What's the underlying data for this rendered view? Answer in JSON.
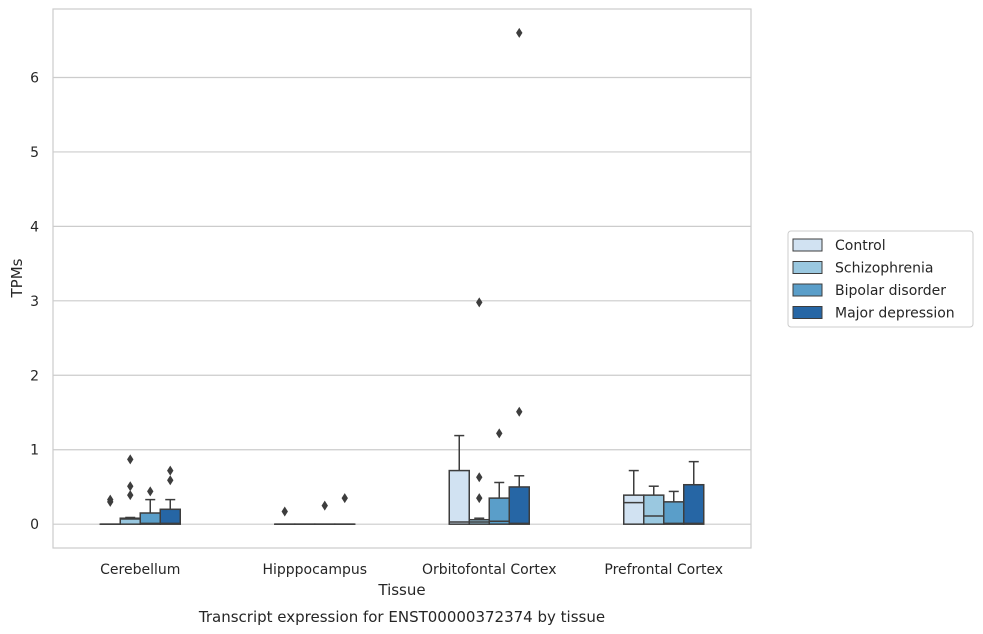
{
  "chart_data": {
    "type": "box",
    "title": "",
    "caption": "Transcript expression for ENST00000372374 by tissue",
    "xlabel": "Tissue",
    "ylabel": "TPMs",
    "ylim": [
      -0.32,
      6.92
    ],
    "yticks": [
      0,
      1,
      2,
      3,
      4,
      5,
      6
    ],
    "grid": "horizontal",
    "legend_position": "right",
    "categories": [
      "Cerebellum",
      "Hipppocampus",
      "Orbitofontal Cortex",
      "Prefrontal Cortex"
    ],
    "series": [
      {
        "name": "Control",
        "color": "#d1e2f2",
        "boxes": [
          {
            "whislo": 0,
            "q1": 0,
            "med": 0,
            "q3": 0,
            "whishi": 0,
            "fliers": [
              0.3,
              0.33
            ]
          },
          {
            "whislo": 0,
            "q1": 0,
            "med": 0,
            "q3": 0,
            "whishi": 0,
            "fliers": [
              0.17
            ]
          },
          {
            "whislo": 0,
            "q1": 0,
            "med": 0.03,
            "q3": 0.72,
            "whishi": 1.19,
            "fliers": []
          },
          {
            "whislo": 0,
            "q1": 0,
            "med": 0.29,
            "q3": 0.39,
            "whishi": 0.72,
            "fliers": []
          }
        ]
      },
      {
        "name": "Schizophrenia",
        "color": "#9ac8e0",
        "boxes": [
          {
            "whislo": 0,
            "q1": 0,
            "med": 0.07,
            "q3": 0.08,
            "whishi": 0.09,
            "fliers": [
              0.39,
              0.51,
              0.87
            ]
          },
          {
            "whislo": 0,
            "q1": 0,
            "med": 0,
            "q3": 0,
            "whishi": 0,
            "fliers": []
          },
          {
            "whislo": 0,
            "q1": 0,
            "med": 0.03,
            "q3": 0.06,
            "whishi": 0.08,
            "fliers": [
              0.35,
              0.63,
              2.98
            ]
          },
          {
            "whislo": 0,
            "q1": 0,
            "med": 0.11,
            "q3": 0.39,
            "whishi": 0.51,
            "fliers": []
          }
        ]
      },
      {
        "name": "Bipolar disorder",
        "color": "#5a9ec9",
        "boxes": [
          {
            "whislo": 0,
            "q1": 0,
            "med": 0.01,
            "q3": 0.15,
            "whishi": 0.33,
            "fliers": [
              0.44
            ]
          },
          {
            "whislo": 0,
            "q1": 0,
            "med": 0,
            "q3": 0,
            "whishi": 0,
            "fliers": [
              0.25
            ]
          },
          {
            "whislo": 0,
            "q1": 0,
            "med": 0.04,
            "q3": 0.35,
            "whishi": 0.56,
            "fliers": [
              1.22
            ]
          },
          {
            "whislo": 0,
            "q1": 0,
            "med": 0.01,
            "q3": 0.3,
            "whishi": 0.44,
            "fliers": []
          }
        ]
      },
      {
        "name": "Major depression",
        "color": "#2666a5",
        "boxes": [
          {
            "whislo": 0,
            "q1": 0,
            "med": 0.01,
            "q3": 0.2,
            "whishi": 0.33,
            "fliers": [
              0.59,
              0.72
            ]
          },
          {
            "whislo": 0,
            "q1": 0,
            "med": 0,
            "q3": 0,
            "whishi": 0,
            "fliers": [
              0.35
            ]
          },
          {
            "whislo": 0,
            "q1": 0,
            "med": 0.01,
            "q3": 0.5,
            "whishi": 0.65,
            "fliers": [
              1.51,
              6.6
            ]
          },
          {
            "whislo": 0,
            "q1": 0,
            "med": 0.01,
            "q3": 0.53,
            "whishi": 0.84,
            "fliers": []
          }
        ]
      }
    ]
  }
}
